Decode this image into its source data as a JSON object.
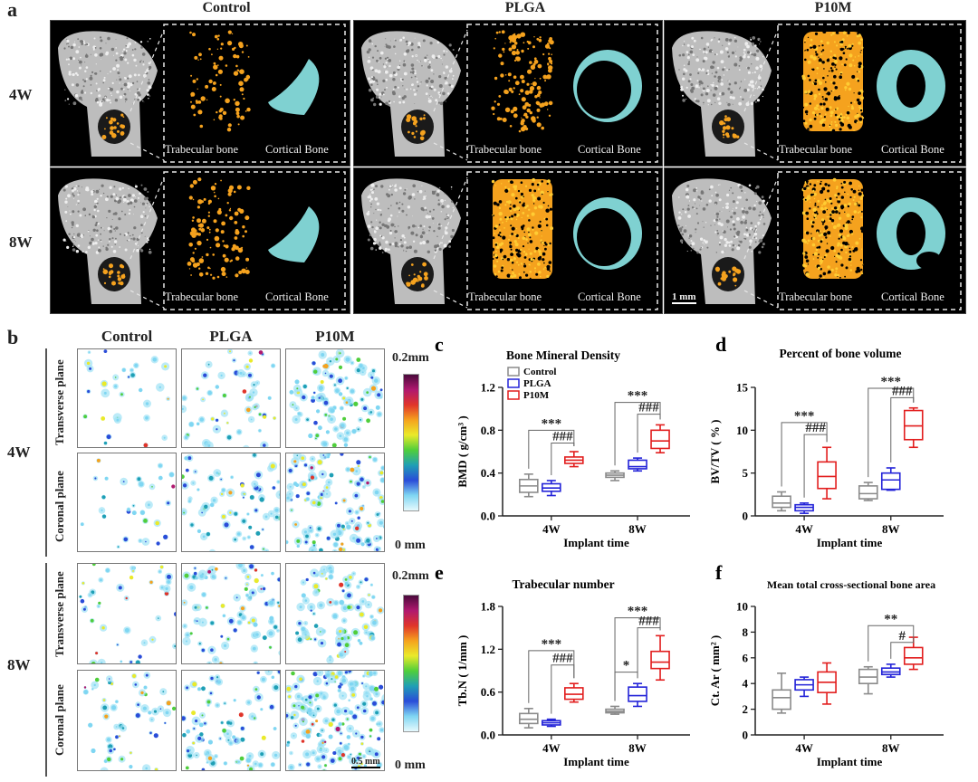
{
  "panel_a": {
    "label": "a",
    "groups": [
      "Control",
      "PLGA",
      "P10M"
    ],
    "rows": [
      "4W",
      "8W"
    ],
    "caption_trabecular": [
      "Trabecular bone",
      "Trabecular bone",
      "Trabecular bone"
    ],
    "caption_cortical": [
      "Cortical Bone",
      "Cortical Bone",
      "Cortical Bone"
    ],
    "scale": "1 mm",
    "colors": {
      "trabecular": "#f5a21e",
      "cortical": "#7fd1d1",
      "bone": "#bdbdbd"
    }
  },
  "panel_b": {
    "label": "b",
    "groups": [
      "Control",
      "PLGA",
      "P10M"
    ],
    "rows": [
      "4W",
      "8W"
    ],
    "planes": [
      "Transverse plane",
      "Coronal plane"
    ],
    "colorbar_max": "0.2mm",
    "colorbar_min": "0 mm",
    "scale": "0.5 mm"
  },
  "chart_data": [
    {
      "id": "c",
      "label": "c",
      "type": "box",
      "title": "Bone Mineral Density",
      "ylabel": "BMD ( g/cm³ )",
      "xlabel": "Implant time",
      "categories": [
        "4W",
        "8W"
      ],
      "ylim": [
        0,
        1.2
      ],
      "yticks": [
        "0.0",
        "0.4",
        "0.8",
        "1.2"
      ],
      "legend": [
        "Control",
        "PLGA",
        "P10M"
      ],
      "series": [
        {
          "name": "Control",
          "color": "#8a8a8a",
          "boxes": [
            [
              0.18,
              0.22,
              0.28,
              0.34,
              0.39
            ],
            [
              0.33,
              0.36,
              0.38,
              0.4,
              0.42
            ]
          ]
        },
        {
          "name": "PLGA",
          "color": "#2323d8",
          "boxes": [
            [
              0.19,
              0.23,
              0.26,
              0.3,
              0.33
            ],
            [
              0.42,
              0.44,
              0.46,
              0.52,
              0.54
            ]
          ]
        },
        {
          "name": "P10M",
          "color": "#e21d1d",
          "boxes": [
            [
              0.46,
              0.49,
              0.52,
              0.55,
              0.6
            ],
            [
              0.59,
              0.63,
              0.7,
              0.8,
              0.85
            ]
          ]
        }
      ],
      "sig": [
        {
          "cat": 0,
          "from": 0,
          "to": 2,
          "text": "***",
          "y": 0.8
        },
        {
          "cat": 0,
          "from": 1,
          "to": 2,
          "text": "###",
          "y": 0.68
        },
        {
          "cat": 1,
          "from": 0,
          "to": 2,
          "text": "***",
          "y": 1.06
        },
        {
          "cat": 1,
          "from": 1,
          "to": 2,
          "text": "###",
          "y": 0.95
        }
      ]
    },
    {
      "id": "d",
      "label": "d",
      "type": "box",
      "title": "Percent of bone volume",
      "ylabel": "BV/TV ( % )",
      "xlabel": "Implant time",
      "categories": [
        "4W",
        "8W"
      ],
      "ylim": [
        0,
        15
      ],
      "yticks": [
        "0",
        "5",
        "10",
        "15"
      ],
      "series": [
        {
          "name": "Control",
          "color": "#8a8a8a",
          "boxes": [
            [
              0.6,
              1.0,
              1.5,
              2.3,
              2.8
            ],
            [
              1.8,
              2.0,
              2.6,
              3.5,
              3.9
            ]
          ]
        },
        {
          "name": "PLGA",
          "color": "#2323d8",
          "boxes": [
            [
              0.3,
              0.6,
              1.0,
              1.3,
              1.5
            ],
            [
              3.0,
              3.1,
              4.2,
              5.0,
              5.6
            ]
          ]
        },
        {
          "name": "P10M",
          "color": "#e21d1d",
          "boxes": [
            [
              2.0,
              3.2,
              4.6,
              6.3,
              8.0
            ],
            [
              8.0,
              8.9,
              10.5,
              12.3,
              12.6
            ]
          ]
        }
      ],
      "sig": [
        {
          "cat": 0,
          "from": 0,
          "to": 2,
          "text": "***",
          "y": 10.9
        },
        {
          "cat": 0,
          "from": 1,
          "to": 2,
          "text": "###",
          "y": 9.5
        },
        {
          "cat": 1,
          "from": 0,
          "to": 2,
          "text": "***",
          "y": 14.9
        },
        {
          "cat": 1,
          "from": 1,
          "to": 2,
          "text": "###",
          "y": 13.8
        }
      ]
    },
    {
      "id": "e",
      "label": "e",
      "type": "box",
      "title": "Trabecular number",
      "ylabel": "Tb.N ( 1/mm )",
      "xlabel": "Implant time",
      "categories": [
        "4W",
        "8W"
      ],
      "ylim": [
        0,
        1.8
      ],
      "yticks": [
        "0.0",
        "0.6",
        "1.2",
        "1.8"
      ],
      "series": [
        {
          "name": "Control",
          "color": "#8a8a8a",
          "boxes": [
            [
              0.1,
              0.16,
              0.22,
              0.3,
              0.37
            ],
            [
              0.29,
              0.31,
              0.33,
              0.36,
              0.4
            ]
          ]
        },
        {
          "name": "PLGA",
          "color": "#2323d8",
          "boxes": [
            [
              0.12,
              0.14,
              0.17,
              0.2,
              0.22
            ],
            [
              0.4,
              0.47,
              0.55,
              0.67,
              0.72
            ]
          ]
        },
        {
          "name": "P10M",
          "color": "#e21d1d",
          "boxes": [
            [
              0.46,
              0.5,
              0.57,
              0.66,
              0.72
            ],
            [
              0.77,
              0.93,
              1.02,
              1.17,
              1.39
            ]
          ]
        }
      ],
      "sig": [
        {
          "cat": 0,
          "from": 0,
          "to": 2,
          "text": "***",
          "y": 1.18
        },
        {
          "cat": 0,
          "from": 1,
          "to": 2,
          "text": "###",
          "y": 0.98
        },
        {
          "cat": 1,
          "from": 0,
          "to": 2,
          "text": "***",
          "y": 1.64
        },
        {
          "cat": 1,
          "from": 1,
          "to": 2,
          "text": "###",
          "y": 1.5
        },
        {
          "cat": 1,
          "from": 0,
          "to": 1,
          "text": "*",
          "y": 0.88
        }
      ]
    },
    {
      "id": "f",
      "label": "f",
      "type": "box",
      "title": "Mean total cross-sectional bone area",
      "ylabel": "Ct. Ar ( mm² )",
      "xlabel": "Implant time",
      "categories": [
        "4W",
        "8W"
      ],
      "ylim": [
        0,
        10
      ],
      "yticks": [
        "0",
        "2",
        "4",
        "6",
        "8",
        "10"
      ],
      "series": [
        {
          "name": "Control",
          "color": "#8a8a8a",
          "boxes": [
            [
              1.7,
              2.0,
              2.9,
              3.5,
              4.8
            ],
            [
              3.2,
              4.0,
              4.5,
              5.1,
              5.3
            ]
          ]
        },
        {
          "name": "PLGA",
          "color": "#2323d8",
          "boxes": [
            [
              3.0,
              3.5,
              3.9,
              4.3,
              4.5
            ],
            [
              4.5,
              4.7,
              4.9,
              5.2,
              5.5
            ]
          ]
        },
        {
          "name": "P10M",
          "color": "#e21d1d",
          "boxes": [
            [
              2.4,
              3.3,
              4.1,
              4.9,
              5.6
            ],
            [
              5.1,
              5.5,
              6.0,
              6.8,
              7.6
            ]
          ]
        }
      ],
      "sig": [
        {
          "cat": 1,
          "from": 0,
          "to": 2,
          "text": "**",
          "y": 8.5
        },
        {
          "cat": 1,
          "from": 1,
          "to": 2,
          "text": "#",
          "y": 7.2
        }
      ]
    }
  ]
}
